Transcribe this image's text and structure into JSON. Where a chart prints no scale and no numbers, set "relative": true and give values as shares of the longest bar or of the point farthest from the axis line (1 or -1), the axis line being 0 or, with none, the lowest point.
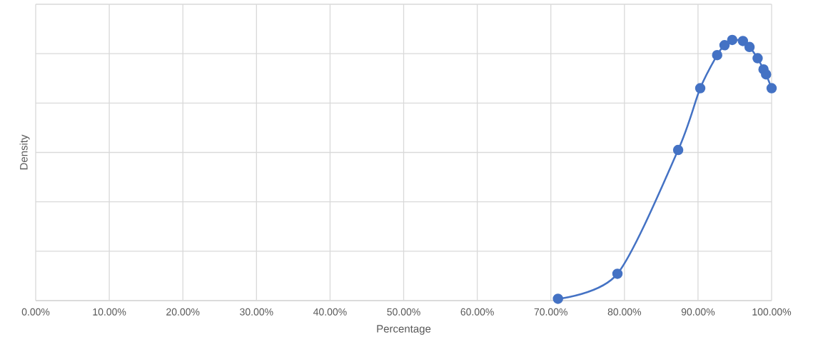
{
  "chart_data": {
    "type": "line",
    "xlabel": "Percentage",
    "ylabel": "Density",
    "relative": true,
    "grid": true,
    "marker": "circle",
    "line_style": "solid",
    "xlim": [
      0,
      1
    ],
    "xticks": [
      {
        "value": 0,
        "label": "0.00%"
      },
      {
        "value": 0.1,
        "label": "10.00%"
      },
      {
        "value": 0.2,
        "label": "20.00%"
      },
      {
        "value": 0.3,
        "label": "30.00%"
      },
      {
        "value": 0.4,
        "label": "40.00%"
      },
      {
        "value": 0.5,
        "label": "50.00%"
      },
      {
        "value": 0.6,
        "label": "60.00%"
      },
      {
        "value": 0.7,
        "label": "70.00%"
      },
      {
        "value": 0.8,
        "label": "80.00%"
      },
      {
        "value": 0.9,
        "label": "90.00%"
      },
      {
        "value": 1,
        "label": "100.00%"
      }
    ],
    "series": [
      {
        "color": "#4472c4",
        "x": [
          0.7097,
          0.7905,
          0.873,
          0.903,
          0.926,
          0.936,
          0.9465,
          0.961,
          0.97,
          0.981,
          0.989,
          0.9925,
          1.0
        ],
        "values": [
          0.007,
          0.103,
          0.578,
          0.815,
          0.942,
          0.98,
          1,
          0.996,
          0.973,
          0.93,
          0.887,
          0.868,
          0.815
        ]
      }
    ]
  }
}
